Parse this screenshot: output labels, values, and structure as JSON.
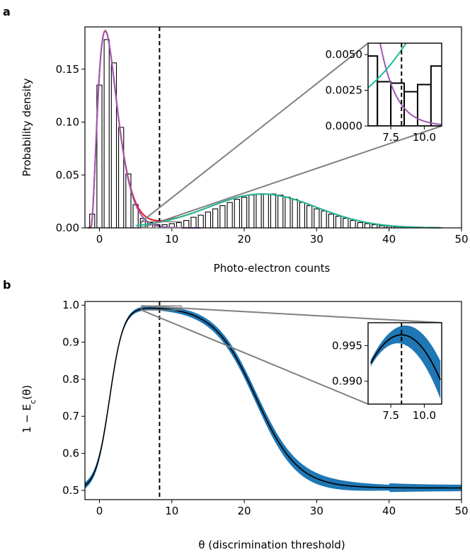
{
  "chart_data": [
    {
      "panel": "a",
      "type": "bar",
      "xlabel": "Photo-electron counts",
      "ylabel": "Probability density",
      "xlim": [
        -2,
        50
      ],
      "ylim": [
        0,
        0.19
      ],
      "xticks": [
        0,
        10,
        20,
        30,
        40,
        50
      ],
      "yticks": [
        "0.00",
        "0.05",
        "0.10",
        "0.15"
      ],
      "ytick_values": [
        0,
        0.05,
        0.1,
        0.15
      ],
      "threshold": 8.3,
      "histogram": {
        "x": [
          -1,
          0,
          1,
          2,
          3,
          4,
          5,
          6,
          7,
          8,
          9,
          10,
          11,
          12,
          13,
          14,
          15,
          16,
          17,
          18,
          19,
          20,
          21,
          22,
          23,
          24,
          25,
          26,
          27,
          28,
          29,
          30,
          31,
          32,
          33,
          34,
          35,
          36,
          37,
          38,
          39,
          40,
          41,
          42,
          43,
          44,
          45,
          46,
          47
        ],
        "values": [
          0.013,
          0.135,
          0.178,
          0.156,
          0.095,
          0.051,
          0.022,
          0.009,
          0.005,
          0.003,
          0.003,
          0.004,
          0.005,
          0.007,
          0.01,
          0.012,
          0.015,
          0.018,
          0.021,
          0.024,
          0.027,
          0.029,
          0.031,
          0.032,
          0.032,
          0.032,
          0.031,
          0.029,
          0.027,
          0.024,
          0.021,
          0.018,
          0.016,
          0.013,
          0.011,
          0.009,
          0.007,
          0.005,
          0.004,
          0.003,
          0.002,
          0.0015,
          0.001,
          0.0008,
          0.0005,
          0.0003,
          0.0002,
          0.0001,
          0.0001
        ]
      },
      "fits": [
        {
          "color": "#9b59b6",
          "model": "dark",
          "peak_x": 0.8,
          "peak_y": 0.186
        },
        {
          "color": "#1abc9c",
          "model": "bright",
          "mean": 22.5,
          "peak_y": 0.032
        },
        {
          "color": "#e41a1c",
          "model": "sum"
        }
      ],
      "inset": {
        "xlim": [
          5.8,
          11.3
        ],
        "ylim": [
          0,
          0.0058
        ],
        "xticks": [
          "7.5",
          "10.0"
        ],
        "xtick_values": [
          7.5,
          10.0
        ],
        "yticks": [
          "0.0000",
          "0.0025",
          "0.0050"
        ],
        "ytick_values": [
          0,
          0.0025,
          0.005
        ],
        "bins": [
          6,
          7,
          8,
          9,
          10,
          11
        ],
        "bin_values": [
          0.0049,
          0.0031,
          0.003,
          0.0024,
          0.0029,
          0.0042
        ]
      }
    },
    {
      "panel": "b",
      "type": "line",
      "xlabel": "θ (discrimination threshold)",
      "ylabel": "1 − E",
      "ylabel_sub": "c",
      "ylabel_suffix": "(θ)",
      "xlim": [
        -2,
        50
      ],
      "ylim": [
        0.475,
        1.01
      ],
      "xticks": [
        0,
        10,
        20,
        30,
        40,
        50
      ],
      "yticks": [
        "0.5",
        "0.6",
        "0.7",
        "0.8",
        "0.9",
        "1.0"
      ],
      "ytick_values": [
        0.5,
        0.6,
        0.7,
        0.8,
        0.9,
        1.0
      ],
      "threshold": 8.3,
      "band_color": "#1f77b4",
      "line_color": "#000000",
      "asymptote": 0.505,
      "peak": [
        8.3,
        0.9965
      ],
      "inset": {
        "xlim": [
          5.8,
          11.3
        ],
        "ylim": [
          0.9868,
          0.9982
        ],
        "xticks": [
          "7.5",
          "10.0"
        ],
        "xtick_values": [
          7.5,
          10.0
        ],
        "yticks": [
          "0.990",
          "0.995"
        ],
        "ytick_values": [
          0.99,
          0.995
        ]
      }
    }
  ]
}
